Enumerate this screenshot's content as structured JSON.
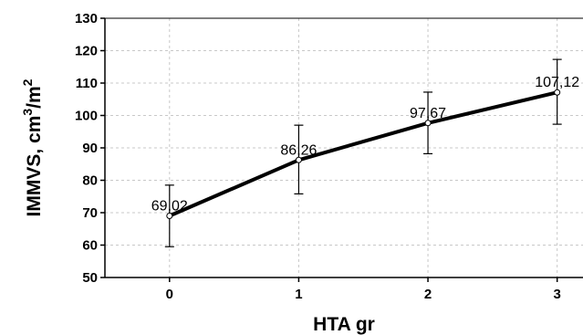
{
  "chart_data": {
    "type": "line",
    "title": "",
    "xlabel": "HTA gr",
    "ylabel_parts": [
      "IMMVS, cm",
      "3",
      "/m",
      "2"
    ],
    "x": [
      0,
      1,
      2,
      3
    ],
    "x_ticks": [
      "0",
      "1",
      "2",
      "3"
    ],
    "y_ticks": [
      "50",
      "60",
      "70",
      "80",
      "90",
      "100",
      "110",
      "120",
      "130"
    ],
    "xlim": [
      -0.5,
      3.2
    ],
    "ylim": [
      50,
      130
    ],
    "grid": true,
    "series": [
      {
        "values": [
          69.02,
          86.26,
          97.67,
          107.12
        ],
        "labels": [
          "69,02",
          "86,26",
          "97,67",
          "107,12"
        ],
        "error_low": [
          59.5,
          75.8,
          88.2,
          97.3
        ],
        "error_high": [
          78.5,
          97.0,
          107.2,
          117.3
        ],
        "color": "#000000"
      }
    ]
  }
}
